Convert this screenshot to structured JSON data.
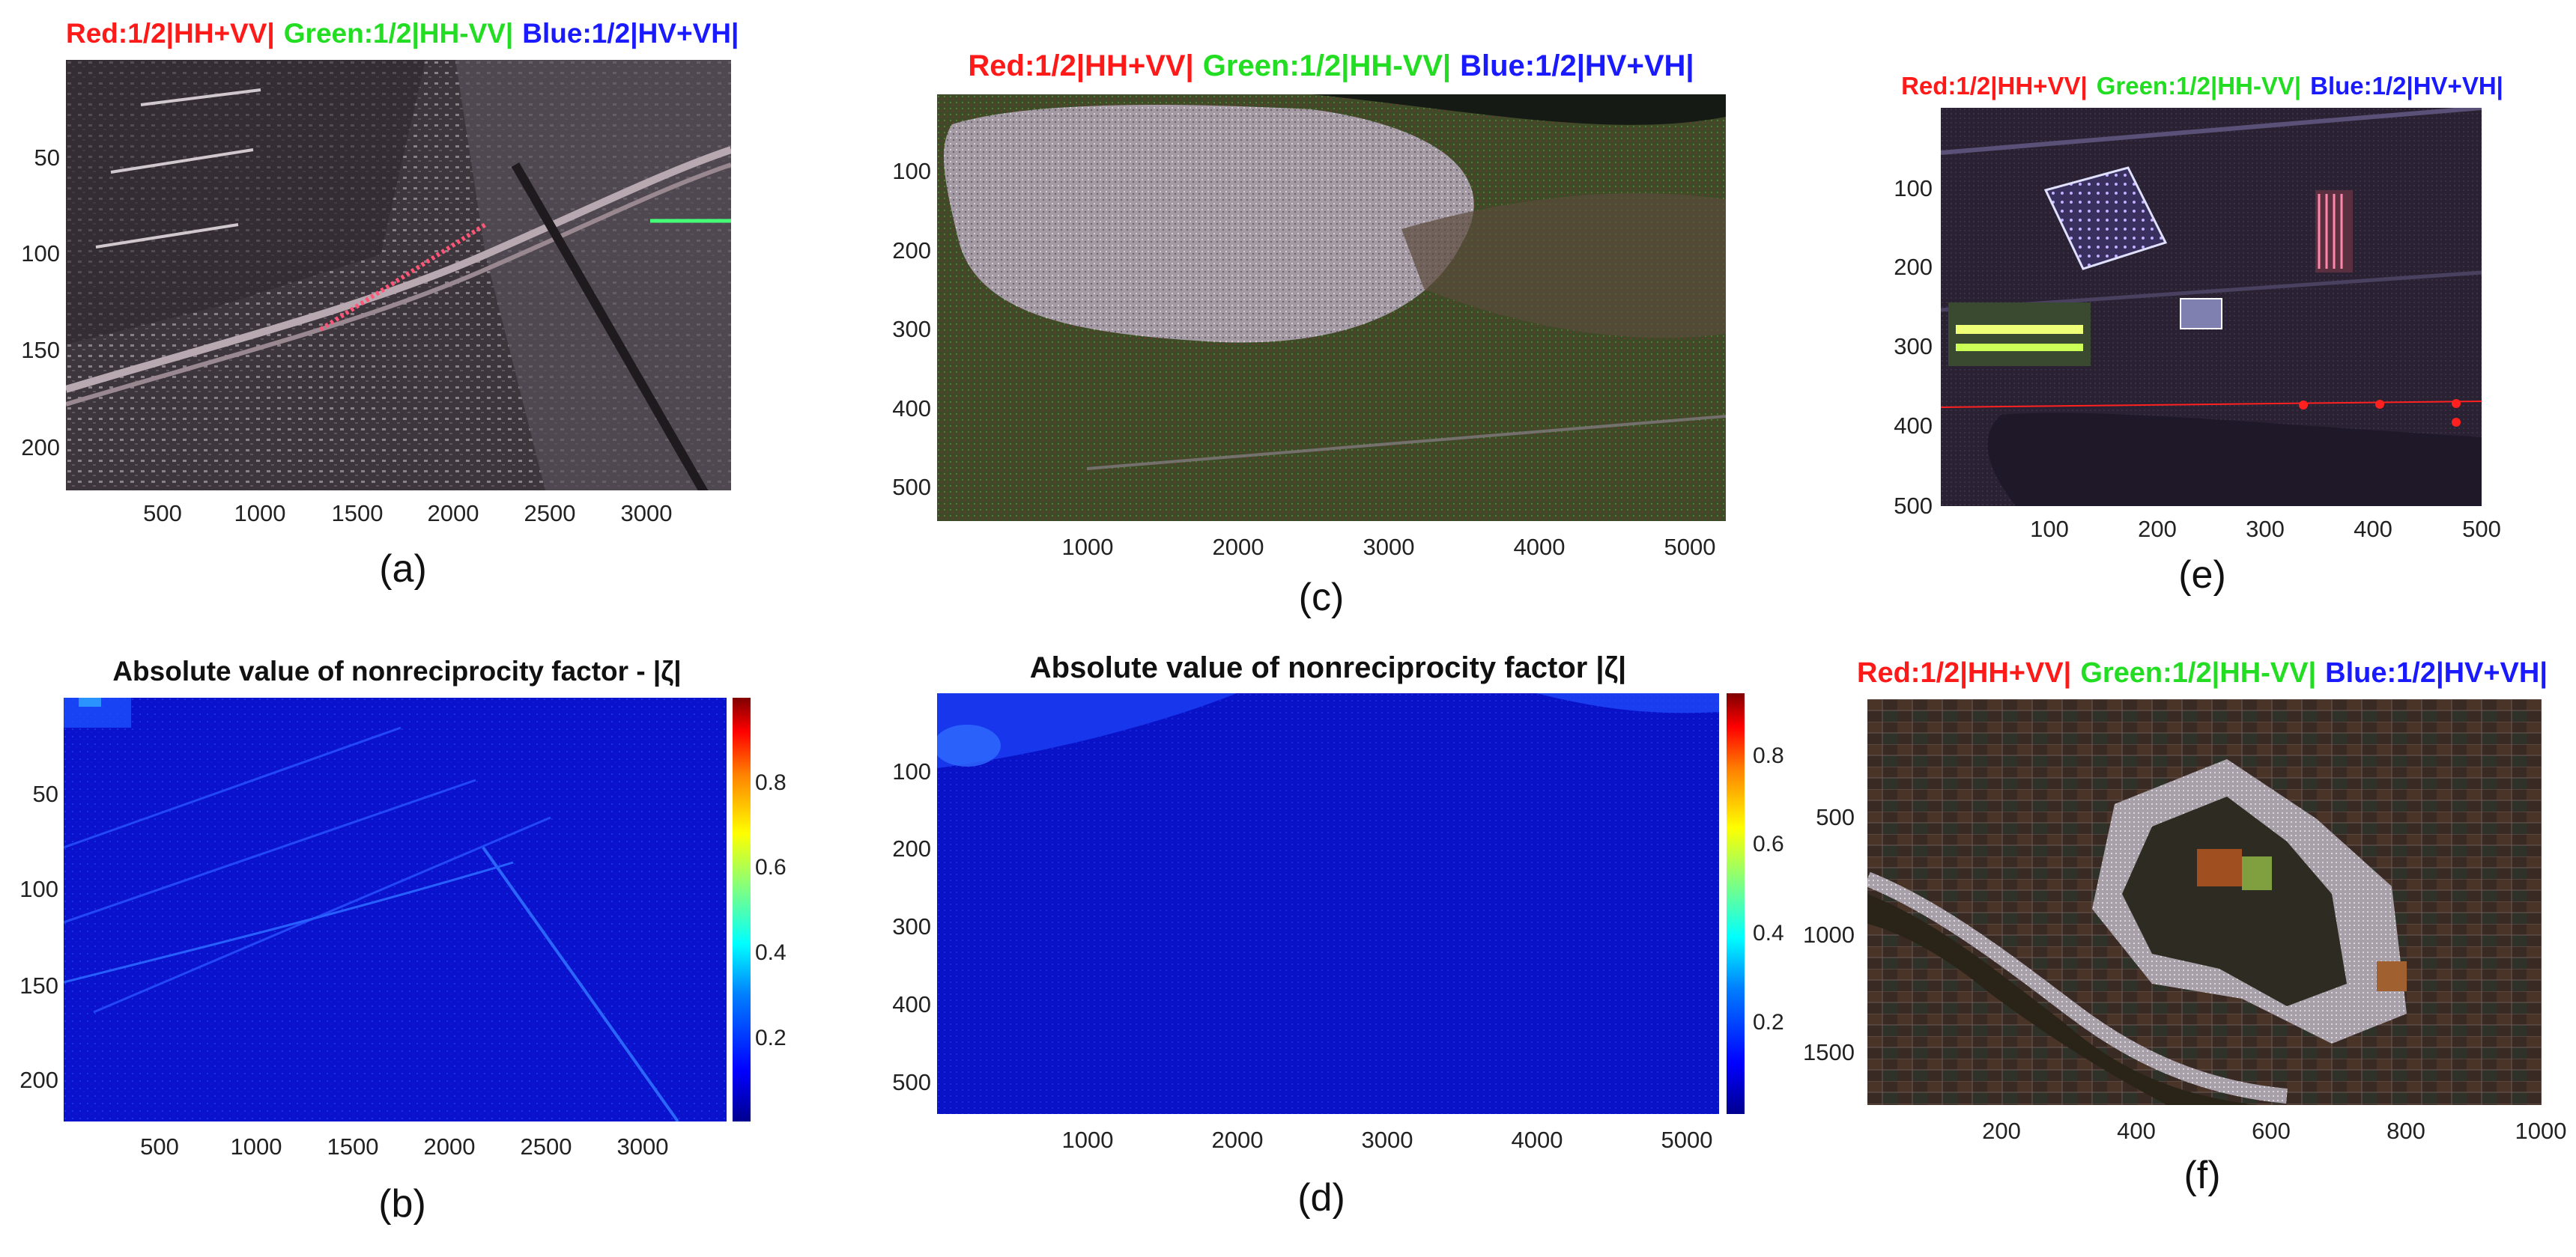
{
  "rgb_title": {
    "red": "Red:1/2|HH+VV|",
    "green": "Green:1/2|HH-VV|",
    "blue": "Blue:1/2|HV+VH|"
  },
  "colors": {
    "red": "#ff1a1a",
    "green": "#22dd22",
    "blue": "#1a1aff"
  },
  "panels": {
    "a": {
      "caption": "(a)",
      "yticks": [
        "50",
        "100",
        "150",
        "200"
      ],
      "xticks": [
        "500",
        "1000",
        "1500",
        "2000",
        "2500",
        "3000"
      ]
    },
    "b": {
      "caption": "(b)",
      "title": "Absolute value of nonreciprocity factor - |ζ|",
      "yticks": [
        "50",
        "100",
        "150",
        "200"
      ],
      "xticks": [
        "500",
        "1000",
        "1500",
        "2000",
        "2500",
        "3000"
      ],
      "cbticks": [
        "0.8",
        "0.6",
        "0.4",
        "0.2"
      ]
    },
    "c": {
      "caption": "(c)",
      "yticks": [
        "100",
        "200",
        "300",
        "400",
        "500"
      ],
      "xticks": [
        "1000",
        "2000",
        "3000",
        "4000",
        "5000"
      ]
    },
    "d": {
      "caption": "(d)",
      "title": "Absolute value of nonreciprocity factor |ζ|",
      "yticks": [
        "100",
        "200",
        "300",
        "400",
        "500"
      ],
      "xticks": [
        "1000",
        "2000",
        "3000",
        "4000",
        "5000"
      ],
      "cbticks": [
        "0.8",
        "0.6",
        "0.4",
        "0.2"
      ]
    },
    "e": {
      "caption": "(e)",
      "yticks": [
        "100",
        "200",
        "300",
        "400",
        "500"
      ],
      "xticks": [
        "100",
        "200",
        "300",
        "400",
        "500"
      ]
    },
    "f": {
      "caption": "(f)",
      "yticks": [
        "500",
        "1000",
        "1500"
      ],
      "xticks": [
        "200",
        "400",
        "600",
        "800",
        "1000"
      ]
    }
  }
}
